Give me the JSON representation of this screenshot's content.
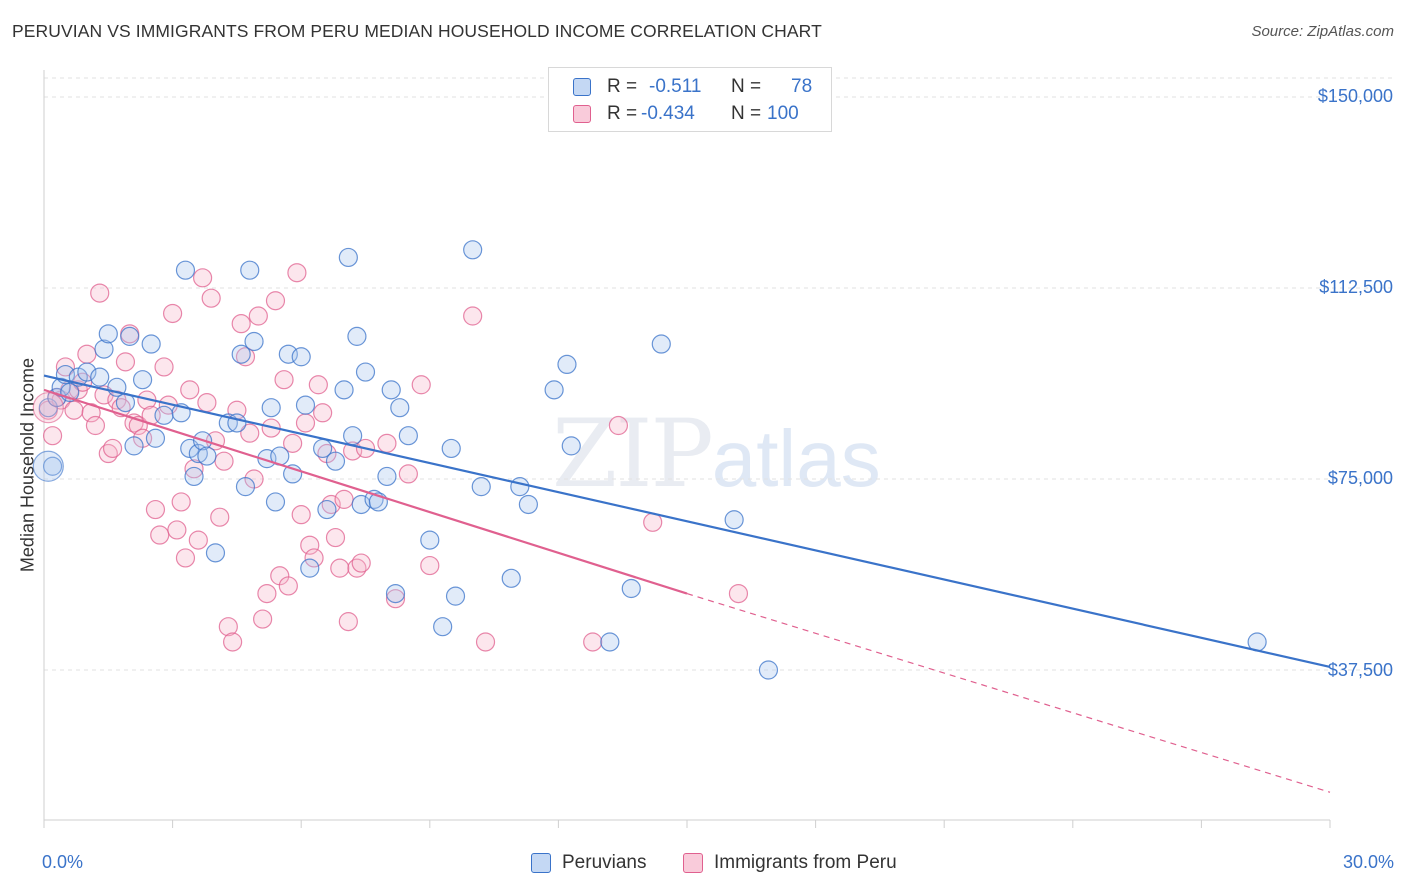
{
  "title": "PERUVIAN VS IMMIGRANTS FROM PERU MEDIAN HOUSEHOLD INCOME CORRELATION CHART",
  "source": "Source: ZipAtlas.com",
  "watermark": {
    "zip": "ZIP",
    "atlas": "atlas"
  },
  "colors": {
    "blue": "#3a73c9",
    "blue_fill": "#a9c6ee",
    "pink": "#e0608f",
    "pink_fill": "#f6b6cb"
  },
  "legend": {
    "rows": [
      {
        "r_label": "R =",
        "r_value": "-0.511",
        "n_label": "N =",
        "n_value": "78"
      },
      {
        "r_label": "R =",
        "r_value": "-0.434",
        "n_label": "N =",
        "n_value": "100"
      }
    ]
  },
  "bottom_legend": {
    "series1": "Peruvians",
    "series2": "Immigrants from Peru"
  },
  "chart_data": {
    "type": "scatter",
    "xlabel": "",
    "ylabel": "Median Household Income",
    "x_tick_labels": [
      "0.0%",
      "30.0%"
    ],
    "y_tick_labels": [
      "$150,000",
      "$112,500",
      "$75,000",
      "$37,500"
    ],
    "y_ticks": [
      150000,
      112500,
      75000,
      37500
    ],
    "xlim": [
      0,
      30
    ],
    "ylim": [
      0,
      155000
    ],
    "grid": true,
    "legend_position": "top-center",
    "series": [
      {
        "name": "Peruvians",
        "color": "#3a73c9",
        "trend": {
          "x0": 0,
          "y0": 95300,
          "x1": 30,
          "y1": 38100
        },
        "points": [
          [
            0.1,
            89000
          ],
          [
            0.2,
            77500
          ],
          [
            0.3,
            91000
          ],
          [
            0.4,
            93000
          ],
          [
            0.5,
            95500
          ],
          [
            0.6,
            92000
          ],
          [
            0.8,
            95000
          ],
          [
            1.0,
            96000
          ],
          [
            1.3,
            95000
          ],
          [
            1.4,
            100500
          ],
          [
            1.5,
            103500
          ],
          [
            1.7,
            93000
          ],
          [
            1.9,
            90000
          ],
          [
            2.0,
            103000
          ],
          [
            2.1,
            81500
          ],
          [
            2.3,
            94500
          ],
          [
            2.5,
            101500
          ],
          [
            2.6,
            83000
          ],
          [
            2.8,
            87500
          ],
          [
            3.2,
            88000
          ],
          [
            3.3,
            116000
          ],
          [
            3.4,
            81000
          ],
          [
            3.5,
            75500
          ],
          [
            3.6,
            80000
          ],
          [
            3.7,
            82500
          ],
          [
            3.8,
            79500
          ],
          [
            4.0,
            60500
          ],
          [
            4.3,
            86000
          ],
          [
            4.5,
            86000
          ],
          [
            4.6,
            99500
          ],
          [
            4.7,
            73500
          ],
          [
            4.8,
            116000
          ],
          [
            4.9,
            102000
          ],
          [
            5.2,
            79000
          ],
          [
            5.3,
            89000
          ],
          [
            5.4,
            70500
          ],
          [
            5.5,
            79500
          ],
          [
            5.7,
            99500
          ],
          [
            5.8,
            76000
          ],
          [
            6.0,
            99000
          ],
          [
            6.1,
            89500
          ],
          [
            6.2,
            57500
          ],
          [
            6.5,
            81000
          ],
          [
            6.6,
            69000
          ],
          [
            6.8,
            78500
          ],
          [
            7.0,
            92500
          ],
          [
            7.1,
            118500
          ],
          [
            7.2,
            83500
          ],
          [
            7.3,
            103000
          ],
          [
            7.4,
            70000
          ],
          [
            7.5,
            96000
          ],
          [
            7.7,
            71000
          ],
          [
            7.8,
            70500
          ],
          [
            8.0,
            75500
          ],
          [
            8.1,
            92500
          ],
          [
            8.2,
            52500
          ],
          [
            8.3,
            89000
          ],
          [
            8.5,
            83500
          ],
          [
            9.0,
            63000
          ],
          [
            9.3,
            46000
          ],
          [
            9.5,
            81000
          ],
          [
            9.6,
            52000
          ],
          [
            10.0,
            120000
          ],
          [
            10.2,
            73500
          ],
          [
            10.9,
            55500
          ],
          [
            11.1,
            73500
          ],
          [
            11.3,
            70000
          ],
          [
            11.9,
            92500
          ],
          [
            12.2,
            97500
          ],
          [
            12.3,
            81500
          ],
          [
            13.2,
            43000
          ],
          [
            13.7,
            53500
          ],
          [
            14.4,
            101500
          ],
          [
            16.1,
            67000
          ],
          [
            16.9,
            37500
          ],
          [
            28.3,
            43000
          ]
        ]
      },
      {
        "name": "Immigrants from Peru",
        "color": "#e0608f",
        "trend": {
          "x0": 0,
          "y0": 92500,
          "x1": 15.0,
          "y1": 52500
        },
        "trend_dashed": {
          "x0": 15.0,
          "y0": 52500,
          "x1": 30,
          "y1": 13500
        },
        "points": [
          [
            0.1,
            88500
          ],
          [
            0.2,
            83500
          ],
          [
            0.3,
            91000
          ],
          [
            0.4,
            90500
          ],
          [
            0.5,
            97000
          ],
          [
            0.6,
            92500
          ],
          [
            0.7,
            88500
          ],
          [
            0.8,
            92500
          ],
          [
            0.9,
            94000
          ],
          [
            1.0,
            99500
          ],
          [
            1.1,
            88000
          ],
          [
            1.2,
            85500
          ],
          [
            1.3,
            111500
          ],
          [
            1.4,
            91500
          ],
          [
            1.5,
            80000
          ],
          [
            1.6,
            81000
          ],
          [
            1.7,
            90500
          ],
          [
            1.8,
            89000
          ],
          [
            1.9,
            98000
          ],
          [
            2.0,
            103500
          ],
          [
            2.1,
            86000
          ],
          [
            2.2,
            85500
          ],
          [
            2.3,
            83000
          ],
          [
            2.4,
            90500
          ],
          [
            2.5,
            87500
          ],
          [
            2.6,
            69000
          ],
          [
            2.7,
            64000
          ],
          [
            2.8,
            97000
          ],
          [
            2.9,
            89500
          ],
          [
            3.0,
            107500
          ],
          [
            3.1,
            65000
          ],
          [
            3.2,
            70500
          ],
          [
            3.3,
            59500
          ],
          [
            3.4,
            92500
          ],
          [
            3.5,
            77000
          ],
          [
            3.6,
            63000
          ],
          [
            3.7,
            114500
          ],
          [
            3.8,
            90000
          ],
          [
            3.9,
            110500
          ],
          [
            4.0,
            82500
          ],
          [
            4.1,
            67500
          ],
          [
            4.2,
            78500
          ],
          [
            4.3,
            46000
          ],
          [
            4.4,
            43000
          ],
          [
            4.5,
            88500
          ],
          [
            4.6,
            105500
          ],
          [
            4.7,
            99000
          ],
          [
            4.8,
            84000
          ],
          [
            4.9,
            75000
          ],
          [
            5.0,
            107000
          ],
          [
            5.1,
            47500
          ],
          [
            5.2,
            52500
          ],
          [
            5.3,
            85000
          ],
          [
            5.4,
            110000
          ],
          [
            5.5,
            56000
          ],
          [
            5.6,
            94500
          ],
          [
            5.7,
            54000
          ],
          [
            5.8,
            82000
          ],
          [
            5.9,
            115500
          ],
          [
            6.0,
            68000
          ],
          [
            6.1,
            86000
          ],
          [
            6.2,
            62000
          ],
          [
            6.3,
            59500
          ],
          [
            6.4,
            93500
          ],
          [
            6.5,
            88000
          ],
          [
            6.6,
            80000
          ],
          [
            6.7,
            70000
          ],
          [
            6.8,
            63500
          ],
          [
            6.9,
            57500
          ],
          [
            7.0,
            71000
          ],
          [
            7.1,
            47000
          ],
          [
            7.2,
            80500
          ],
          [
            7.3,
            57500
          ],
          [
            7.4,
            58500
          ],
          [
            7.5,
            81000
          ],
          [
            8.0,
            82000
          ],
          [
            8.2,
            51500
          ],
          [
            8.5,
            76000
          ],
          [
            8.8,
            93500
          ],
          [
            9.0,
            58000
          ],
          [
            10.0,
            107000
          ],
          [
            10.3,
            43000
          ],
          [
            12.8,
            43000
          ],
          [
            13.4,
            85500
          ],
          [
            14.2,
            66500
          ],
          [
            16.2,
            52500
          ]
        ]
      }
    ]
  }
}
